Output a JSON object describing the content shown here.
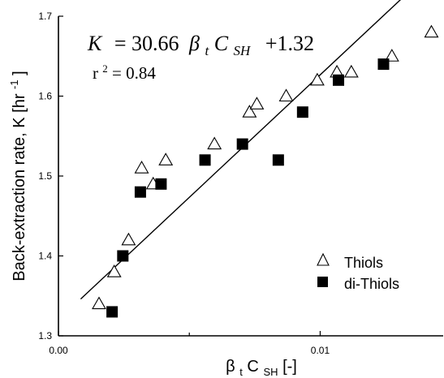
{
  "chart_data": {
    "type": "scatter",
    "title": "",
    "xlabel": "βtCSH [-]",
    "xlabel_parts": {
      "main": "β",
      "sub1": "t",
      "mid": "C",
      "sub2": "SH",
      "tail": " [-]"
    },
    "ylabel": "Back-extraction rate, K [hr-1]",
    "ylabel_parts": {
      "main": "Back-extraction rate, K [hr",
      "sup": "-1",
      "tail": "]"
    },
    "xlim": [
      0.0,
      0.0147
    ],
    "ylim": [
      1.3,
      1.7
    ],
    "x_ticks": [
      0.0,
      0.01
    ],
    "x_tick_labels": [
      "0.00",
      "0.01"
    ],
    "x_minor_ticks": [
      0.005
    ],
    "y_ticks": [
      1.3,
      1.4,
      1.5,
      1.6,
      1.7
    ],
    "y_tick_labels": [
      "1.3",
      "1.4",
      "1.5",
      "1.6",
      "1.7"
    ],
    "grid": false,
    "legend_position": "bottom-right",
    "equation": {
      "lhs": "K",
      "equals": "= 30.66",
      "beta": "β",
      "sub_t": "t",
      "c": "C",
      "sub_sh": "SH",
      "tail": "+1.32"
    },
    "r_squared": {
      "r": "r",
      "sup": "2",
      "value": "= 0.84"
    },
    "fit": {
      "slope": 30.66,
      "intercept": 1.32,
      "x_range": [
        0.00085,
        0.0132
      ]
    },
    "series": [
      {
        "name": "Thiols",
        "marker": "open-triangle",
        "points": [
          {
            "x": 0.00155,
            "y": 1.34
          },
          {
            "x": 0.00213,
            "y": 1.38
          },
          {
            "x": 0.00268,
            "y": 1.42
          },
          {
            "x": 0.00318,
            "y": 1.51
          },
          {
            "x": 0.00362,
            "y": 1.49
          },
          {
            "x": 0.0041,
            "y": 1.52
          },
          {
            "x": 0.00596,
            "y": 1.54
          },
          {
            "x": 0.0073,
            "y": 1.58
          },
          {
            "x": 0.00758,
            "y": 1.59
          },
          {
            "x": 0.0087,
            "y": 1.6
          },
          {
            "x": 0.00989,
            "y": 1.62
          },
          {
            "x": 0.01064,
            "y": 1.63
          },
          {
            "x": 0.01119,
            "y": 1.63
          },
          {
            "x": 0.01274,
            "y": 1.65
          },
          {
            "x": 0.01425,
            "y": 1.68
          }
        ]
      },
      {
        "name": "di-Thiols",
        "marker": "filled-square",
        "points": [
          {
            "x": 0.00205,
            "y": 1.33
          },
          {
            "x": 0.00246,
            "y": 1.4
          },
          {
            "x": 0.00313,
            "y": 1.48
          },
          {
            "x": 0.00392,
            "y": 1.49
          },
          {
            "x": 0.0056,
            "y": 1.52
          },
          {
            "x": 0.00703,
            "y": 1.54
          },
          {
            "x": 0.0084,
            "y": 1.52
          },
          {
            "x": 0.00933,
            "y": 1.58
          },
          {
            "x": 0.0107,
            "y": 1.62
          },
          {
            "x": 0.01242,
            "y": 1.64
          }
        ]
      }
    ],
    "colors": {
      "axis": "#000000",
      "marker_stroke": "#000000",
      "marker_fill_open": "#ffffff",
      "marker_fill_filled": "#000000"
    }
  }
}
